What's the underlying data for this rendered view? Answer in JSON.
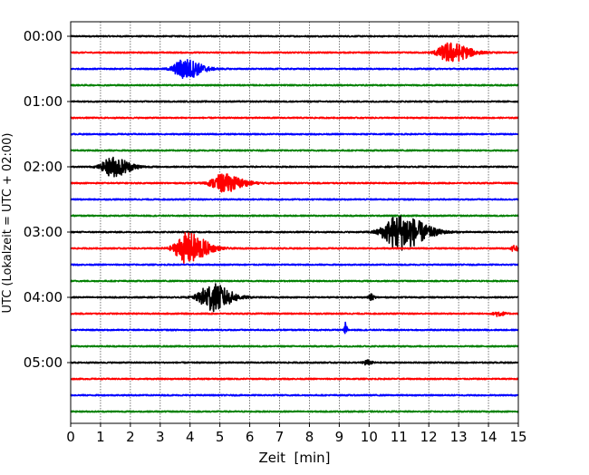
{
  "chart_data": {
    "type": "line",
    "title": "",
    "xlabel": "Zeit  [min]",
    "ylabel": "UTC (Lokalzeit = UTC + 02:00)",
    "xlim": [
      0,
      15
    ],
    "x_ticks": [
      "0",
      "1",
      "2",
      "3",
      "4",
      "5",
      "6",
      "7",
      "8",
      "9",
      "10",
      "11",
      "12",
      "13",
      "14",
      "15"
    ],
    "y_tick_labels": [
      "00:00",
      "01:00",
      "02:00",
      "03:00",
      "04:00",
      "05:00"
    ],
    "grid": "vertical dotted",
    "trace_interval_minutes": 15,
    "trace_count": 24,
    "trace_colors": [
      "#000000",
      "#ff0000",
      "#0000ff",
      "#008000"
    ],
    "noise_level": 0.04,
    "events": [
      {
        "trace": 1,
        "center_min": 12.7,
        "amplitude": 0.6,
        "width_min": 0.45
      },
      {
        "trace": 2,
        "center_min": 3.8,
        "amplitude": 0.62,
        "width_min": 0.4
      },
      {
        "trace": 8,
        "center_min": 1.4,
        "amplitude": 0.6,
        "width_min": 0.4
      },
      {
        "trace": 9,
        "center_min": 5.1,
        "amplitude": 0.55,
        "width_min": 0.45
      },
      {
        "trace": 12,
        "center_min": 11.0,
        "amplitude": 1.1,
        "width_min": 0.6
      },
      {
        "trace": 13,
        "center_min": 3.9,
        "amplitude": 0.95,
        "width_min": 0.45
      },
      {
        "trace": 13,
        "center_min": 14.85,
        "amplitude": 0.2,
        "width_min": 0.1
      },
      {
        "trace": 16,
        "center_min": 4.7,
        "amplitude": 0.85,
        "width_min": 0.45
      },
      {
        "trace": 16,
        "center_min": 10.05,
        "amplitude": 0.18,
        "width_min": 0.08
      },
      {
        "trace": 17,
        "center_min": 14.3,
        "amplitude": 0.15,
        "width_min": 0.15
      },
      {
        "trace": 18,
        "center_min": 9.2,
        "amplitude": 0.45,
        "width_min": 0.04
      },
      {
        "trace": 20,
        "center_min": 9.9,
        "amplitude": 0.15,
        "width_min": 0.12
      }
    ]
  }
}
